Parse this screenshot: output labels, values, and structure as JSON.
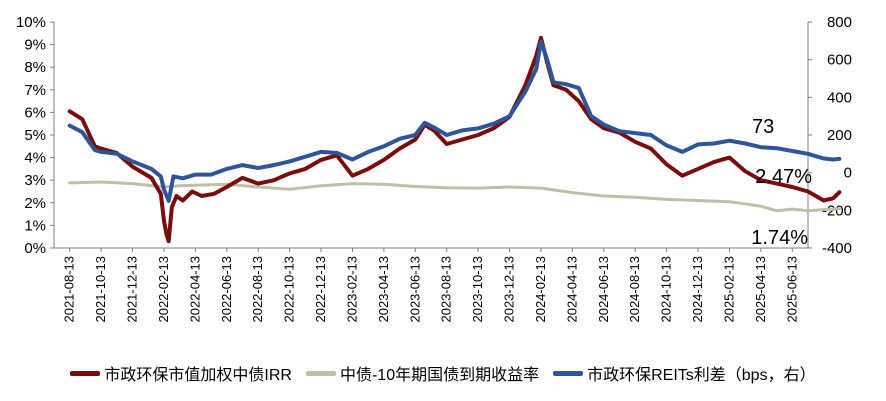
{
  "chart_data": {
    "type": "line",
    "title": "",
    "x_categories": [
      "2021-08-13",
      "2021-10-13",
      "2021-12-13",
      "2022-02-13",
      "2022-04-13",
      "2022-06-13",
      "2022-08-13",
      "2022-10-13",
      "2022-12-13",
      "2023-02-13",
      "2023-04-13",
      "2023-06-13",
      "2023-08-13",
      "2023-10-13",
      "2023-12-13",
      "2024-02-13",
      "2024-04-13",
      "2024-06-13",
      "2024-08-13",
      "2024-10-13",
      "2024-12-13",
      "2025-02-13",
      "2025-04-13",
      "2025-06-13"
    ],
    "left_axis": {
      "ticks": [
        "0%",
        "1%",
        "2%",
        "3%",
        "4%",
        "5%",
        "6%",
        "7%",
        "8%",
        "9%",
        "10%"
      ],
      "ylim": [
        0,
        10
      ],
      "unit": "%"
    },
    "right_axis": {
      "ticks": [
        "-400",
        "-200",
        "0",
        "200",
        "400",
        "600",
        "800"
      ],
      "ylim": [
        -400,
        800
      ],
      "unit": "bps"
    },
    "series": [
      {
        "name": "市政环保市值加权中债IRR",
        "axis": "left",
        "color": "#7B0C0C",
        "points": [
          [
            0,
            6.05
          ],
          [
            0.4,
            5.7
          ],
          [
            0.8,
            4.5
          ],
          [
            1.0,
            4.4
          ],
          [
            1.5,
            4.2
          ],
          [
            2.0,
            3.6
          ],
          [
            2.6,
            3.1
          ],
          [
            2.9,
            2.4
          ],
          [
            3.0,
            1.2
          ],
          [
            3.08,
            0.6
          ],
          [
            3.15,
            0.3
          ],
          [
            3.25,
            1.8
          ],
          [
            3.4,
            2.3
          ],
          [
            3.6,
            2.1
          ],
          [
            3.9,
            2.5
          ],
          [
            4.2,
            2.3
          ],
          [
            4.6,
            2.4
          ],
          [
            5.0,
            2.7
          ],
          [
            5.5,
            3.1
          ],
          [
            6.0,
            2.85
          ],
          [
            6.5,
            3.0
          ],
          [
            7.0,
            3.3
          ],
          [
            7.5,
            3.5
          ],
          [
            8.0,
            3.9
          ],
          [
            8.5,
            4.1
          ],
          [
            9.0,
            3.2
          ],
          [
            9.5,
            3.5
          ],
          [
            10.0,
            3.9
          ],
          [
            10.5,
            4.4
          ],
          [
            11.0,
            4.8
          ],
          [
            11.3,
            5.45
          ],
          [
            11.6,
            5.2
          ],
          [
            12.0,
            4.6
          ],
          [
            12.5,
            4.8
          ],
          [
            13.0,
            5.0
          ],
          [
            13.5,
            5.3
          ],
          [
            14.0,
            5.8
          ],
          [
            14.5,
            7.2
          ],
          [
            14.85,
            8.5
          ],
          [
            15.0,
            9.3
          ],
          [
            15.2,
            8.2
          ],
          [
            15.4,
            7.2
          ],
          [
            15.8,
            7.0
          ],
          [
            16.2,
            6.5
          ],
          [
            16.6,
            5.7
          ],
          [
            17.0,
            5.3
          ],
          [
            17.5,
            5.1
          ],
          [
            18.0,
            4.7
          ],
          [
            18.5,
            4.4
          ],
          [
            19.0,
            3.7
          ],
          [
            19.5,
            3.2
          ],
          [
            20.0,
            3.5
          ],
          [
            20.5,
            3.8
          ],
          [
            21.0,
            4.0
          ],
          [
            21.5,
            3.4
          ],
          [
            22.0,
            3.0
          ],
          [
            22.5,
            2.85
          ],
          [
            23.0,
            2.7
          ],
          [
            23.5,
            2.5
          ],
          [
            24.0,
            2.1
          ],
          [
            24.3,
            2.2
          ],
          [
            24.5,
            2.47
          ]
        ]
      },
      {
        "name": "中债-10年期国债到期收益率",
        "axis": "left",
        "color": "#BFBFA8",
        "points": [
          [
            0,
            2.88
          ],
          [
            1.0,
            2.92
          ],
          [
            2.0,
            2.85
          ],
          [
            3.0,
            2.7
          ],
          [
            3.5,
            2.75
          ],
          [
            4.0,
            2.78
          ],
          [
            5.0,
            2.82
          ],
          [
            6.0,
            2.7
          ],
          [
            7.0,
            2.6
          ],
          [
            8.0,
            2.75
          ],
          [
            9.0,
            2.85
          ],
          [
            10.0,
            2.82
          ],
          [
            11.0,
            2.72
          ],
          [
            12.0,
            2.67
          ],
          [
            13.0,
            2.65
          ],
          [
            14.0,
            2.7
          ],
          [
            15.0,
            2.65
          ],
          [
            16.0,
            2.45
          ],
          [
            17.0,
            2.3
          ],
          [
            18.0,
            2.25
          ],
          [
            19.0,
            2.15
          ],
          [
            20.0,
            2.1
          ],
          [
            21.0,
            2.05
          ],
          [
            22.0,
            1.85
          ],
          [
            22.5,
            1.65
          ],
          [
            23.0,
            1.72
          ],
          [
            23.5,
            1.65
          ],
          [
            24.0,
            1.7
          ],
          [
            24.5,
            1.74
          ]
        ]
      },
      {
        "name": "市政环保REITs利差（bps，右）",
        "axis": "right",
        "color": "#2E5597",
        "points": [
          [
            0,
            250
          ],
          [
            0.4,
            215
          ],
          [
            0.8,
            120
          ],
          [
            1.0,
            110
          ],
          [
            1.5,
            100
          ],
          [
            2.0,
            60
          ],
          [
            2.6,
            20
          ],
          [
            2.9,
            -20
          ],
          [
            3.0,
            -90
          ],
          [
            3.15,
            -150
          ],
          [
            3.3,
            -20
          ],
          [
            3.6,
            -30
          ],
          [
            4.0,
            -10
          ],
          [
            4.5,
            -10
          ],
          [
            5.0,
            20
          ],
          [
            5.5,
            40
          ],
          [
            6.0,
            25
          ],
          [
            6.5,
            40
          ],
          [
            7.0,
            60
          ],
          [
            7.5,
            85
          ],
          [
            8.0,
            110
          ],
          [
            8.5,
            105
          ],
          [
            9.0,
            70
          ],
          [
            9.5,
            110
          ],
          [
            10.0,
            140
          ],
          [
            10.5,
            180
          ],
          [
            11.0,
            200
          ],
          [
            11.3,
            265
          ],
          [
            11.6,
            240
          ],
          [
            12.0,
            200
          ],
          [
            12.5,
            225
          ],
          [
            13.0,
            235
          ],
          [
            13.5,
            260
          ],
          [
            14.0,
            300
          ],
          [
            14.5,
            430
          ],
          [
            14.85,
            550
          ],
          [
            15.0,
            695
          ],
          [
            15.2,
            600
          ],
          [
            15.4,
            480
          ],
          [
            15.8,
            470
          ],
          [
            16.2,
            450
          ],
          [
            16.6,
            300
          ],
          [
            17.0,
            255
          ],
          [
            17.5,
            220
          ],
          [
            18.0,
            210
          ],
          [
            18.5,
            200
          ],
          [
            19.0,
            145
          ],
          [
            19.5,
            110
          ],
          [
            20.0,
            150
          ],
          [
            20.5,
            155
          ],
          [
            21.0,
            170
          ],
          [
            21.5,
            155
          ],
          [
            22.0,
            135
          ],
          [
            22.5,
            130
          ],
          [
            23.0,
            115
          ],
          [
            23.5,
            100
          ],
          [
            24.0,
            75
          ],
          [
            24.3,
            70
          ],
          [
            24.5,
            73
          ]
        ]
      }
    ],
    "annotations": [
      {
        "text": "73",
        "series": "市政环保REITs利差（bps，右）"
      },
      {
        "text": "2.47%",
        "series": "市政环保市值加权中债IRR"
      },
      {
        "text": "1.74%",
        "series": "中债-10年期国债到期收益率"
      }
    ],
    "legend_position": "bottom",
    "grid": false
  }
}
